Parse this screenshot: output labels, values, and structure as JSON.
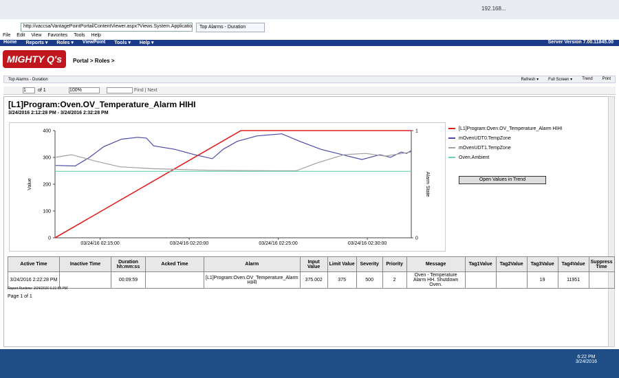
{
  "browser": {
    "url": "http://vaccsa/VantagePointPortal/ContentViewer.aspx?Views.System.Applications.Portal...",
    "tab": "Top Alarms - Duration",
    "remote": "192.168...",
    "menu": [
      "File",
      "Edit",
      "View",
      "Favorites",
      "Tools",
      "Help"
    ]
  },
  "app": {
    "nav": [
      "Home",
      "Reports ▾",
      "Roles ▾",
      "ViewPoint",
      "Tools ▾",
      "Help ▾"
    ],
    "server_version": "Server Version 7.00.11845.00",
    "logo": "MIGHTY Q's",
    "breadcrumb": "Portal > Roles >",
    "panel_title": "Top Alarms - Duration",
    "panel_buttons": [
      "Refresh ▾",
      "Full Screen ▾",
      "Trend",
      "Print"
    ]
  },
  "report_toolbar": {
    "page": "1",
    "of": "of 1",
    "zoom": "100%",
    "find": "Find | Next"
  },
  "report": {
    "title": "[L1]Program:Oven.OV_Temperature_Alarm HIHI",
    "subtitle": "3/24/2016 2:12:28 PM - 3/24/2016 2:32:28 PM",
    "button": "Open Values in Trend",
    "runtime": "Report Runtime: 3/24/2016 6:21:55 PM",
    "pages": "Page 1 of 1"
  },
  "chart_data": {
    "type": "line",
    "ylabel": "Value",
    "y2label": "Alarm State",
    "xlim": [
      12.467,
      32.467
    ],
    "xticks": [
      {
        "value": 15,
        "label": "03/24/16 02:15:00"
      },
      {
        "value": 20,
        "label": "03/24/16 02:20:00"
      },
      {
        "value": 25,
        "label": "03/24/16 02:25:00"
      },
      {
        "value": 30,
        "label": "03/24/16 02:30:00"
      }
    ],
    "ylim": [
      0,
      400
    ],
    "yticks": [
      0,
      100,
      200,
      300,
      400
    ],
    "y2lim": [
      0,
      1
    ],
    "y2ticks": [
      0,
      1
    ],
    "grid": false,
    "series": [
      {
        "name": "[L1]Program:Oven.OV_Temperature_Alarm HIHI",
        "color": "#e02020",
        "axis": "y2",
        "x": [
          12.467,
          22.9,
          32.467
        ],
        "values": [
          0,
          1,
          1
        ]
      },
      {
        "name": "mOvenUDT0.TempZone",
        "color": "#4a4aa8",
        "x": [
          12.5,
          13.6,
          14.4,
          15.2,
          16.2,
          17.1,
          17.6,
          18.0,
          19.2,
          20.3,
          21.3,
          21.9,
          22.7,
          23.8,
          25.2,
          26.2,
          27.4,
          28.9,
          29.7,
          30.7,
          31.3,
          31.9,
          32.2,
          32.467
        ],
        "values": [
          270,
          268,
          300,
          340,
          368,
          375,
          372,
          343,
          330,
          310,
          295,
          330,
          360,
          380,
          388,
          360,
          330,
          305,
          292,
          310,
          300,
          320,
          315,
          325
        ]
      },
      {
        "name": "mOvenUDT1.TempZone",
        "color": "#a0a0a0",
        "x": [
          12.467,
          13.4,
          14.8,
          16.1,
          17.9,
          21.0,
          24.8,
          26.0,
          27.2,
          28.7,
          29.9,
          31.0,
          32.467
        ],
        "values": [
          300,
          310,
          285,
          265,
          258,
          252,
          250,
          250,
          280,
          310,
          315,
          305,
          320
        ]
      },
      {
        "name": "Oven.Ambient",
        "color": "#6ccfb0",
        "x": [
          12.467,
          32.467
        ],
        "values": [
          248,
          248
        ]
      }
    ]
  },
  "table": {
    "columns": [
      "Active Time",
      "Inactive Time",
      "Duration hh:mm:ss",
      "Acked Time",
      "Alarm",
      "Input Value",
      "Limit Value",
      "Severity",
      "Priority",
      "Message",
      "Tag1Value",
      "Tag2Value",
      "Tag3Value",
      "Tag4Value",
      "Suppress Time"
    ],
    "rows": [
      [
        "3/24/2016 2:22:28 PM",
        null,
        "00:09:59",
        null,
        "[L1]Program:Oven.OV_Temperature_Alarm HIHI",
        "375.002",
        "375",
        "500",
        "2",
        "Oven - Temperature Alarm HH. Shutdown Oven.",
        null,
        null,
        "19",
        "11951",
        null
      ]
    ]
  },
  "taskbar": {
    "time": "6:22 PM",
    "date": "3/24/2016"
  }
}
